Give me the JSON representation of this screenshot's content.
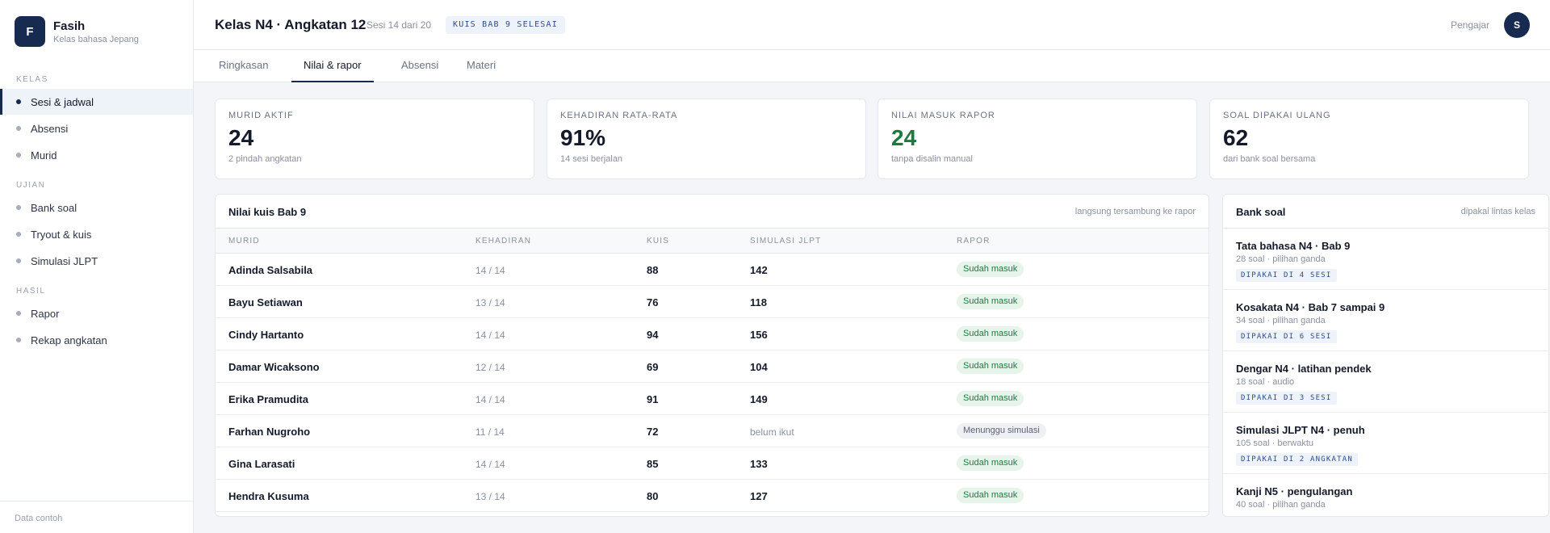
{
  "brand": {
    "logo_letter": "F",
    "name": "Fasih",
    "subtitle": "Kelas bahasa Jepang"
  },
  "sidebar": {
    "sections": [
      {
        "label": "KELAS",
        "items": [
          {
            "label": "Sesi & jadwal",
            "active": true
          },
          {
            "label": "Absensi"
          },
          {
            "label": "Murid"
          }
        ]
      },
      {
        "label": "UJIAN",
        "items": [
          {
            "label": "Bank soal"
          },
          {
            "label": "Tryout & kuis"
          },
          {
            "label": "Simulasi JLPT"
          }
        ]
      },
      {
        "label": "HASIL",
        "items": [
          {
            "label": "Rapor"
          },
          {
            "label": "Rekap angkatan"
          }
        ]
      }
    ],
    "footer": "Data contoh"
  },
  "header": {
    "title": "Kelas N4 · Angkatan 12",
    "session": "Sesi 14 dari 20",
    "badge": "KUIS BAB 9 SELESAI",
    "role": "Pengajar",
    "avatar_letter": "S"
  },
  "tabs": [
    {
      "label": "Ringkasan"
    },
    {
      "label": "Nilai & rapor",
      "active": true
    },
    {
      "label": "Absensi"
    },
    {
      "label": "Materi"
    }
  ],
  "stats": [
    {
      "label": "MURID AKTIF",
      "value": "24",
      "sub": "2 pindah angkatan"
    },
    {
      "label": "KEHADIRAN RATA-RATA",
      "value": "91%",
      "sub": "14 sesi berjalan"
    },
    {
      "label": "NILAI MASUK RAPOR",
      "value": "24",
      "sub": "tanpa disalin manual",
      "color": "#1d7a3e"
    },
    {
      "label": "SOAL DIPAKAI ULANG",
      "value": "62",
      "sub": "dari bank soal bersama"
    }
  ],
  "grades": {
    "title": "Nilai kuis Bab 9",
    "note": "langsung tersambung ke rapor",
    "columns": [
      "MURID",
      "KEHADIRAN",
      "KUIS",
      "SIMULASI JLPT",
      "RAPOR"
    ],
    "rows": [
      {
        "name": "Adinda Salsabila",
        "attendance": "14 / 14",
        "quiz": "88",
        "sim": "142",
        "status": "Sudah masuk"
      },
      {
        "name": "Bayu Setiawan",
        "attendance": "13 / 14",
        "quiz": "76",
        "sim": "118",
        "status": "Sudah masuk"
      },
      {
        "name": "Cindy Hartanto",
        "attendance": "14 / 14",
        "quiz": "94",
        "sim": "156",
        "status": "Sudah masuk"
      },
      {
        "name": "Damar Wicaksono",
        "attendance": "12 / 14",
        "quiz": "69",
        "sim": "104",
        "status": "Sudah masuk"
      },
      {
        "name": "Erika Pramudita",
        "attendance": "14 / 14",
        "quiz": "91",
        "sim": "149",
        "status": "Sudah masuk"
      },
      {
        "name": "Farhan Nugroho",
        "attendance": "11 / 14",
        "quiz": "72",
        "sim": "belum ikut",
        "status": "Menunggu simulasi"
      },
      {
        "name": "Gina Larasati",
        "attendance": "14 / 14",
        "quiz": "85",
        "sim": "133",
        "status": "Sudah masuk"
      },
      {
        "name": "Hendra Kusuma",
        "attendance": "13 / 14",
        "quiz": "80",
        "sim": "127",
        "status": "Sudah masuk"
      }
    ]
  },
  "bank": {
    "title": "Bank soal",
    "note": "dipakai lintas kelas",
    "items": [
      {
        "title": "Tata bahasa N4 · Bab 9",
        "meta": "28 soal · pilihan ganda",
        "usage": "DIPAKAI DI 4 SESI"
      },
      {
        "title": "Kosakata N4 · Bab 7 sampai 9",
        "meta": "34 soal · pilihan ganda",
        "usage": "DIPAKAI DI 6 SESI"
      },
      {
        "title": "Dengar N4 · latihan pendek",
        "meta": "18 soal · audio",
        "usage": "DIPAKAI DI 3 SESI"
      },
      {
        "title": "Simulasi JLPT N4 · penuh",
        "meta": "105 soal · berwaktu",
        "usage": "DIPAKAI DI 2 ANGKATAN"
      },
      {
        "title": "Kanji N5 · pengulangan",
        "meta": "40 soal · pilihan ganda"
      }
    ]
  }
}
